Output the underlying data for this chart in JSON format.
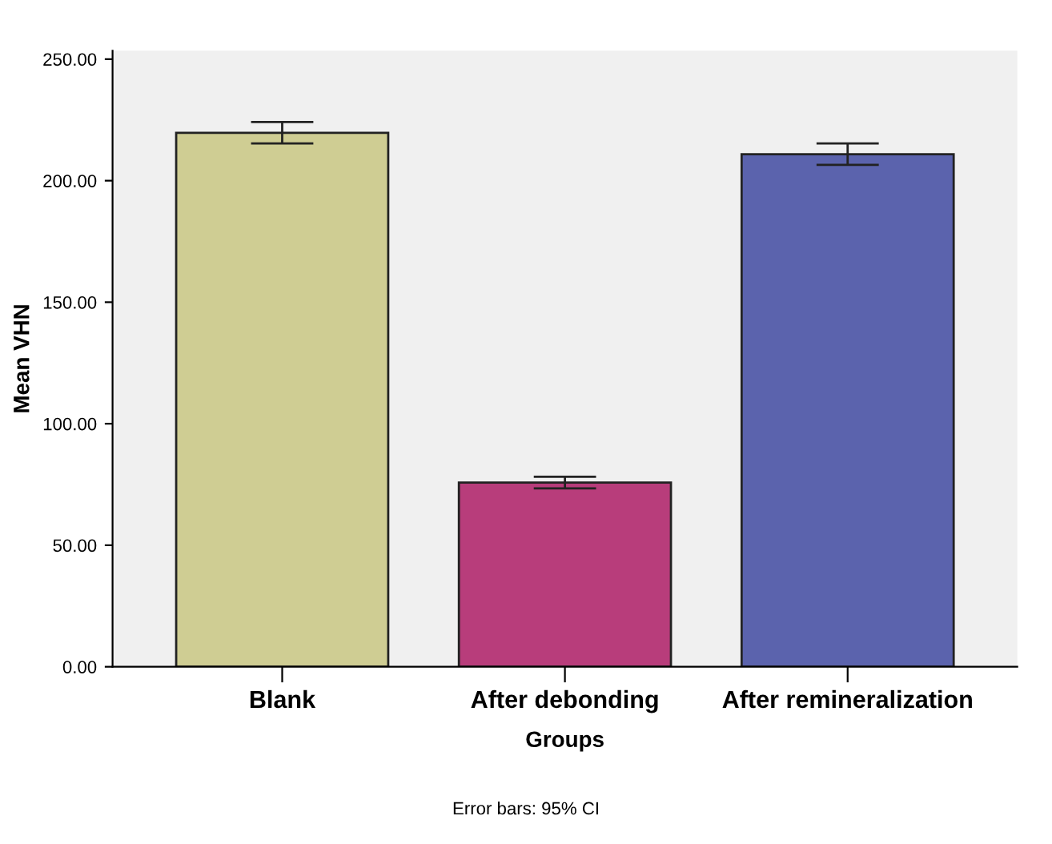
{
  "chart_data": {
    "type": "bar",
    "xlabel": "Groups",
    "ylabel": "Mean VHN",
    "categories": [
      "Blank",
      "After debonding",
      "After remineralization"
    ],
    "values": [
      219.7,
      75.8,
      210.9
    ],
    "colors": [
      "#cfcd93",
      "#b83d7b",
      "#5b63ad"
    ],
    "errors": [
      4.4,
      2.4,
      4.4
    ],
    "ylim": [
      0,
      253.5
    ],
    "yticks": [
      {
        "value": 0,
        "label": "0.00"
      },
      {
        "value": 50,
        "label": "50.00"
      },
      {
        "value": 100,
        "label": "100.00"
      },
      {
        "value": 150,
        "label": "150.00"
      },
      {
        "value": 200,
        "label": "200.00"
      },
      {
        "value": 250,
        "label": "250.00"
      }
    ],
    "grid": false,
    "annotations": [
      "Error bars: 95% CI"
    ]
  }
}
